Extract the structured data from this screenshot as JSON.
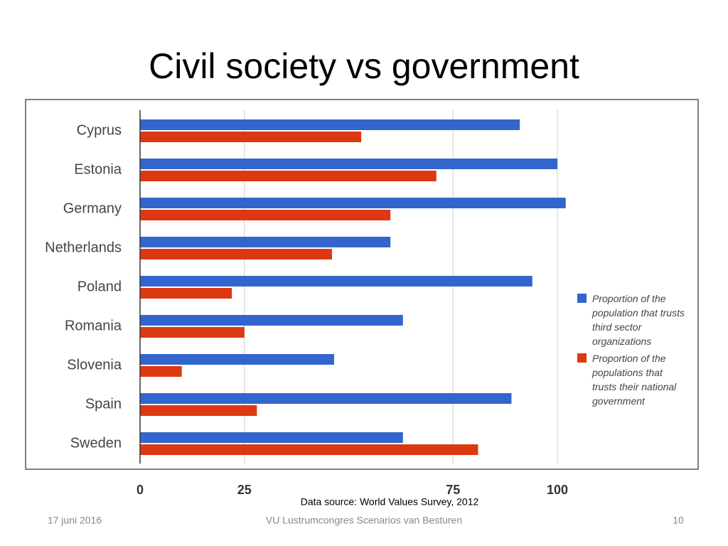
{
  "chart_data": {
    "type": "hbar",
    "title": "Civil society vs government",
    "categories": [
      "Cyprus",
      "Estonia",
      "Germany",
      "Netherlands",
      "Poland",
      "Romania",
      "Slovenia",
      "Spain",
      "Sweden"
    ],
    "series": [
      {
        "name": "Proportion of the population that trusts third sector organizations",
        "color": "#3366cc",
        "values": [
          91,
          100,
          102,
          60,
          94,
          63,
          46.5,
          89,
          63
        ]
      },
      {
        "name": "Proportion of the populations that trusts their national government",
        "color": "#dc3912",
        "values": [
          53,
          71,
          60,
          46,
          22,
          25,
          10,
          28,
          81
        ]
      }
    ],
    "xlim": [
      0,
      100
    ],
    "xticks": [
      0,
      25,
      75,
      100
    ],
    "grid": true,
    "legend": "right",
    "source": "Data source: World Values Survey, 2012"
  },
  "footer": {
    "date": "17 juni 2016",
    "text": "VU Lustrumcongres Scenarios van Besturen",
    "page": "10"
  }
}
